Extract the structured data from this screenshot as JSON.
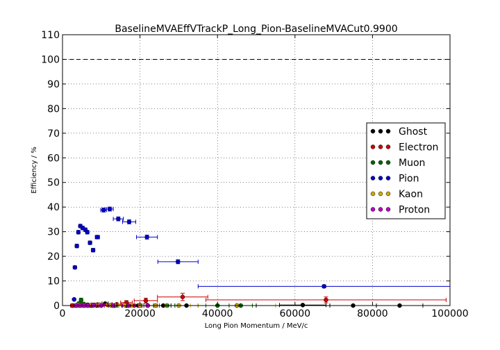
{
  "chart_data": {
    "type": "scatter",
    "title": "BaselineMVAEffVTrackP_Long_Pion-BaselineMVACut0.9900",
    "xlabel": "Long Pion Momentum / MeV/c",
    "ylabel": "Efficiency / %",
    "xlim": [
      0,
      100000
    ],
    "ylim": [
      0,
      110
    ],
    "xticks": [
      "0",
      "20000",
      "40000",
      "60000",
      "80000",
      "100000"
    ],
    "yticks": [
      "0",
      "10",
      "20",
      "30",
      "40",
      "50",
      "60",
      "70",
      "80",
      "90",
      "100",
      "110"
    ],
    "grid": true,
    "reference_line": 100,
    "legend_position": "center-right",
    "series": [
      {
        "name": "Ghost",
        "color": "#000000",
        "points": [
          [
            2800,
            0
          ],
          [
            3500,
            0
          ],
          [
            4500,
            0
          ],
          [
            5500,
            0
          ],
          [
            6500,
            0
          ],
          [
            7500,
            0
          ],
          [
            8800,
            0
          ],
          [
            11000,
            0.8
          ],
          [
            13500,
            0
          ],
          [
            16500,
            0
          ],
          [
            19500,
            0
          ],
          [
            22000,
            0
          ],
          [
            26000,
            0
          ],
          [
            32000,
            0
          ],
          [
            45000,
            0
          ],
          [
            62000,
            0.2
          ],
          [
            75000,
            0
          ],
          [
            87000,
            0
          ]
        ],
        "xerr": [
          400,
          400,
          400,
          400,
          400,
          400,
          600,
          800,
          1000,
          1200,
          1500,
          1500,
          2000,
          3000,
          5000,
          6000,
          6000,
          6000
        ],
        "yerr": [
          0,
          0,
          0,
          0,
          0,
          0,
          0,
          0.3,
          0,
          0,
          0,
          0,
          0,
          0,
          0,
          0.2,
          0,
          0
        ]
      },
      {
        "name": "Electron",
        "color": "#cc0000",
        "points": [
          [
            2500,
            0
          ],
          [
            3500,
            0
          ],
          [
            4500,
            0.4
          ],
          [
            5500,
            0.2
          ],
          [
            6500,
            0.3
          ],
          [
            7500,
            0
          ],
          [
            9000,
            0.4
          ],
          [
            11500,
            0.3
          ],
          [
            14000,
            0.5
          ],
          [
            16500,
            1.2
          ],
          [
            18500,
            0
          ],
          [
            21500,
            2.0
          ],
          [
            31000,
            3.5
          ],
          [
            68000,
            2.3
          ]
        ],
        "xerr": [
          400,
          400,
          400,
          400,
          400,
          400,
          700,
          1000,
          1200,
          1500,
          1000,
          3000,
          6500,
          31000
        ],
        "yerr": [
          0,
          0,
          0.3,
          0.2,
          0.3,
          0,
          0.3,
          0.3,
          0.4,
          0.8,
          0,
          1.0,
          1.5,
          1.2
        ]
      },
      {
        "name": "Muon",
        "color": "#006600",
        "points": [
          [
            4200,
            0.8
          ],
          [
            4800,
            2.2
          ],
          [
            5500,
            0.6
          ],
          [
            6500,
            0.2
          ],
          [
            8000,
            0.2
          ],
          [
            10000,
            0
          ],
          [
            13000,
            0
          ],
          [
            17000,
            0
          ],
          [
            20000,
            0
          ],
          [
            27000,
            0
          ],
          [
            40000,
            0
          ],
          [
            46000,
            0
          ]
        ],
        "xerr": [
          300,
          300,
          300,
          400,
          500,
          800,
          1000,
          1500,
          1500,
          2000,
          3000,
          3000
        ],
        "yerr": [
          0.5,
          0.8,
          0.4,
          0.2,
          0.2,
          0,
          0,
          0,
          0,
          0,
          0,
          0
        ]
      },
      {
        "name": "Pion",
        "color": "#0000cc",
        "points": [
          [
            3000,
            2.5
          ],
          [
            3200,
            15.5
          ],
          [
            3700,
            24.2
          ],
          [
            4100,
            29.8
          ],
          [
            4600,
            32.3
          ],
          [
            5200,
            31.5
          ],
          [
            5900,
            30.8
          ],
          [
            6400,
            29.8
          ],
          [
            7100,
            25.5
          ],
          [
            7900,
            22.5
          ],
          [
            9000,
            27.8
          ],
          [
            10600,
            38.8
          ],
          [
            12200,
            39.2
          ],
          [
            14400,
            35.2
          ],
          [
            17200,
            34.0
          ],
          [
            21800,
            27.8
          ],
          [
            29800,
            17.8
          ],
          [
            67500,
            7.8
          ]
        ],
        "xerr": [
          200,
          200,
          250,
          250,
          300,
          300,
          300,
          350,
          400,
          400,
          550,
          750,
          900,
          1300,
          1700,
          2700,
          5200,
          32500
        ],
        "yerr": [
          0.3,
          0.6,
          0.7,
          0.7,
          0.7,
          0.7,
          0.7,
          0.7,
          0.7,
          0.7,
          0.7,
          0.8,
          0.8,
          0.8,
          0.8,
          0.8,
          0.8,
          0.6
        ]
      },
      {
        "name": "Kaon",
        "color": "#ccaa00",
        "points": [
          [
            4000,
            0.3
          ],
          [
            5000,
            0.2
          ],
          [
            6000,
            0.2
          ],
          [
            7500,
            0.3
          ],
          [
            9500,
            0.3
          ],
          [
            12500,
            0.2
          ],
          [
            16000,
            0.2
          ],
          [
            20000,
            0
          ],
          [
            24000,
            0
          ],
          [
            30000,
            0
          ],
          [
            45000,
            0
          ]
        ],
        "xerr": [
          400,
          400,
          500,
          600,
          800,
          1200,
          1500,
          2000,
          2500,
          3000,
          10000
        ],
        "yerr": [
          0.2,
          0.2,
          0.2,
          0.2,
          0.2,
          0.2,
          0.2,
          0,
          0,
          0,
          0
        ]
      },
      {
        "name": "Proton",
        "color": "#bb00bb",
        "points": [
          [
            3500,
            0
          ],
          [
            4500,
            0
          ],
          [
            5500,
            0
          ],
          [
            6500,
            0
          ],
          [
            8000,
            0.2
          ],
          [
            10000,
            0
          ],
          [
            13000,
            0
          ],
          [
            17000,
            0
          ],
          [
            22000,
            0
          ]
        ],
        "xerr": [
          400,
          400,
          400,
          400,
          600,
          800,
          1200,
          1500,
          2500
        ],
        "yerr": [
          0,
          0,
          0,
          0,
          0.2,
          0,
          0,
          0,
          0
        ]
      }
    ]
  }
}
